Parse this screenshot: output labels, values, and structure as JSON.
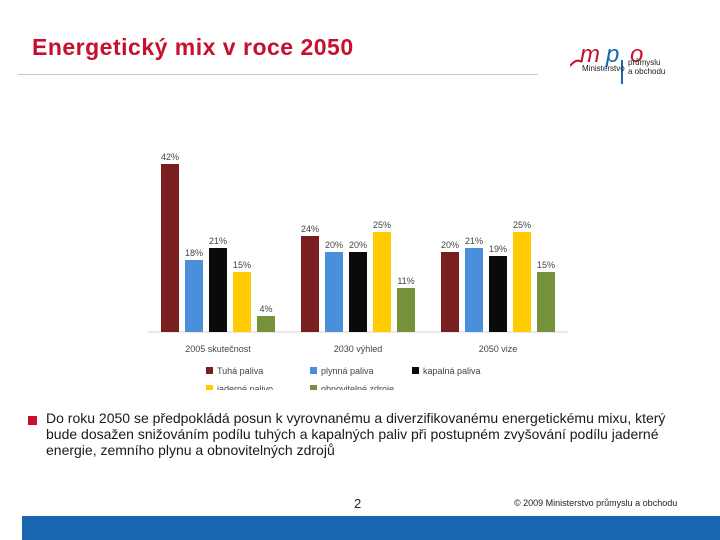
{
  "slide": {
    "title": "Energetický mix v roce 2050",
    "bullet": "Do roku 2050 se předpokládá posun k vyrovnanému a diverzifikovanému energetickému mixu, který bude dosažen snižováním podílu tuhých a kapalných paliv při postupném zvyšování podílu jaderné energie, zemního plynu a obnovitelných zdrojů",
    "page_number": "2",
    "copyright": "© 2009 Ministerstvo průmyslu a obchodu"
  },
  "logo": {
    "text": "mpo",
    "line1": "Ministerstvo",
    "line2": "průmyslu",
    "line3": "a obchodu",
    "colors": {
      "m": "#c8102e",
      "p": "#1a66b0",
      "o": "#c8102e"
    }
  },
  "chart_data": {
    "type": "bar",
    "categories": [
      "2005 skutečnost",
      "2030 výhled",
      "2050 vize"
    ],
    "series": [
      {
        "name": "Tuhá paliva",
        "color": "#7a1f1f",
        "values": [
          42,
          24,
          20
        ]
      },
      {
        "name": "plynná paliva",
        "color": "#4a8fdc",
        "values": [
          18,
          20,
          21
        ]
      },
      {
        "name": "kapalná paliva",
        "color": "#0a0a0a",
        "values": [
          21,
          20,
          19
        ]
      },
      {
        "name": "jaderné palivo",
        "color": "#ffcc00",
        "values": [
          15,
          25,
          25
        ]
      },
      {
        "name": "obnovitelné zdroje",
        "color": "#76923c",
        "values": [
          4,
          11,
          15
        ]
      }
    ],
    "value_suffix": "%",
    "ylim": [
      0,
      45
    ],
    "grid": false,
    "legend": "bottom"
  }
}
